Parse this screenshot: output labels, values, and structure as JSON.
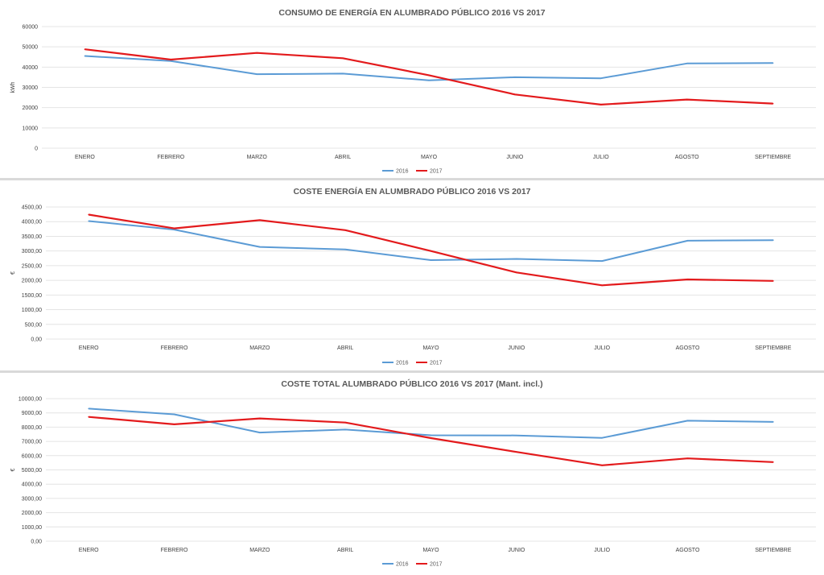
{
  "chart_data": [
    {
      "type": "line",
      "title": "CONSUMO DE ENERGÍA EN ALUMBRADO PÚBLICO 2016 VS 2017",
      "ylabel": "kWh",
      "xlabel": "",
      "categories": [
        "ENERO",
        "FEBRERO",
        "MARZO",
        "ABRIL",
        "MAYO",
        "JUNIO",
        "JULIO",
        "AGOSTO",
        "SEPTIEMBRE"
      ],
      "ylim": [
        0,
        60000
      ],
      "yticks": [
        0,
        10000,
        20000,
        30000,
        40000,
        50000,
        60000
      ],
      "ytick_labels": [
        "0",
        "10000",
        "20000",
        "30000",
        "40000",
        "50000",
        "60000"
      ],
      "grid": true,
      "legend": "bottom",
      "series": [
        {
          "name": "2016",
          "color": "#5b9bd5",
          "values": [
            45500,
            43000,
            36500,
            36800,
            33500,
            35000,
            34500,
            41800,
            42000
          ]
        },
        {
          "name": "2017",
          "color": "#e31a1c",
          "values": [
            48800,
            43700,
            47000,
            44400,
            36000,
            26500,
            21500,
            24000,
            22000
          ]
        }
      ]
    },
    {
      "type": "line",
      "title": "COSTE ENERGÍA EN ALUMBRADO PÚBLICO 2016 VS 2017",
      "ylabel": "€",
      "xlabel": "",
      "categories": [
        "ENERO",
        "FEBRERO",
        "MARZO",
        "ABRIL",
        "MAYO",
        "JUNIO",
        "JULIO",
        "AGOSTO",
        "SEPTIEMBRE"
      ],
      "ylim": [
        0,
        4500
      ],
      "yticks": [
        0,
        500,
        1000,
        1500,
        2000,
        2500,
        3000,
        3500,
        4000,
        4500
      ],
      "ytick_labels": [
        "0,00",
        "500,00",
        "1000,00",
        "1500,00",
        "2000,00",
        "2500,00",
        "3000,00",
        "3500,00",
        "4000,00",
        "4500,00"
      ],
      "grid": true,
      "legend": "bottom",
      "series": [
        {
          "name": "2016",
          "color": "#5b9bd5",
          "values": [
            4020,
            3730,
            3140,
            3050,
            2690,
            2730,
            2660,
            3350,
            3370
          ]
        },
        {
          "name": "2017",
          "color": "#e31a1c",
          "values": [
            4240,
            3770,
            4050,
            3710,
            3000,
            2270,
            1830,
            2030,
            1980
          ]
        }
      ]
    },
    {
      "type": "line",
      "title": "COSTE TOTAL ALUMBRADO PÚBLICO 2016 VS 2017 (Mant. incl.)",
      "ylabel": "€",
      "xlabel": "",
      "categories": [
        "ENERO",
        "FEBRERO",
        "MARZO",
        "ABRIL",
        "MAYO",
        "JUNIO",
        "JULIO",
        "AGOSTO",
        "SEPTIEMBRE"
      ],
      "ylim": [
        0,
        10000
      ],
      "yticks": [
        0,
        1000,
        2000,
        3000,
        4000,
        5000,
        6000,
        7000,
        8000,
        9000,
        10000
      ],
      "ytick_labels": [
        "0,00",
        "1000,00",
        "2000,00",
        "3000,00",
        "4000,00",
        "5000,00",
        "6000,00",
        "7000,00",
        "8000,00",
        "9000,00",
        "10000,00"
      ],
      "grid": true,
      "legend": "bottom",
      "series": [
        {
          "name": "2016",
          "color": "#5b9bd5",
          "values": [
            9300,
            8900,
            7620,
            7830,
            7430,
            7420,
            7250,
            8450,
            8370
          ]
        },
        {
          "name": "2017",
          "color": "#e31a1c",
          "values": [
            8720,
            8200,
            8610,
            8320,
            7230,
            6260,
            5320,
            5810,
            5550
          ]
        }
      ]
    }
  ]
}
